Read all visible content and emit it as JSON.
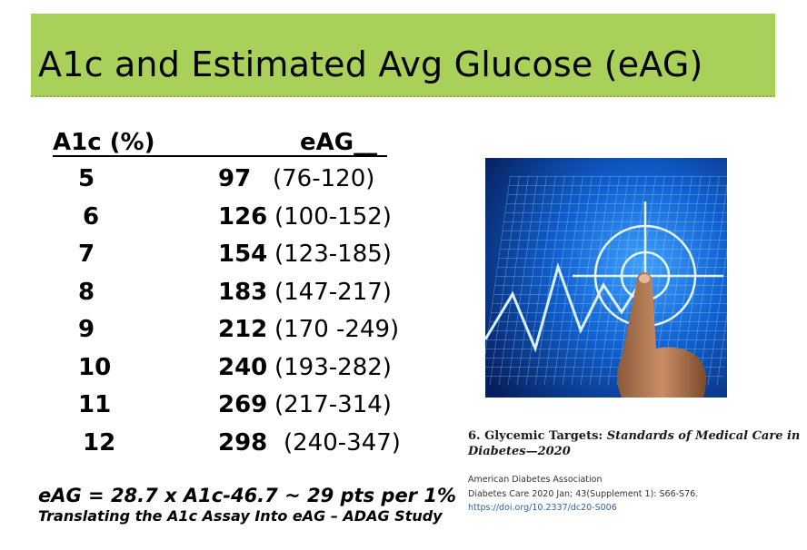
{
  "slide": {
    "title": "A1c and Estimated Avg Glucose (eAG)",
    "title_band_color": "#a9d15a"
  },
  "table": {
    "col_a1c_header": "A1c (%)",
    "col_eag_header": "eAG__",
    "rows": [
      {
        "a1c": "5",
        "eag": "97",
        "range": "(76-120)"
      },
      {
        "a1c": "6",
        "eag": "126",
        "range": "(100-152)"
      },
      {
        "a1c": "7",
        "eag": "154",
        "range": "(123-185)"
      },
      {
        "a1c": "8",
        "eag": "183",
        "range": "(147-217)"
      },
      {
        "a1c": "9",
        "eag": "212",
        "range": "(170 -249)"
      },
      {
        "a1c": "10",
        "eag": "240",
        "range": "(193-282)"
      },
      {
        "a1c": "11",
        "eag": "269",
        "range": "(217-314)"
      },
      {
        "a1c": "12",
        "eag": "298",
        "range": "(240-347)"
      }
    ]
  },
  "formula": "eAG = 28.7 x A1c-46.7  ~ 29 pts per 1%",
  "source": "Translating the A1c Assay Into eAG – ADAG Study",
  "reference": {
    "title_plain": "6. Glycemic Targets: ",
    "title_italic": "Standards of Medical Care in Diabetes—2020",
    "author": "American Diabetes Association",
    "citation": "Diabetes Care 2020 Jan; 43(Supplement 1): S66-S76.",
    "doi": "https://doi.org/10.2337/dc20-S006"
  },
  "image": {
    "icon": "target-grid-finger-image",
    "bg_color": "#0b3d91"
  }
}
